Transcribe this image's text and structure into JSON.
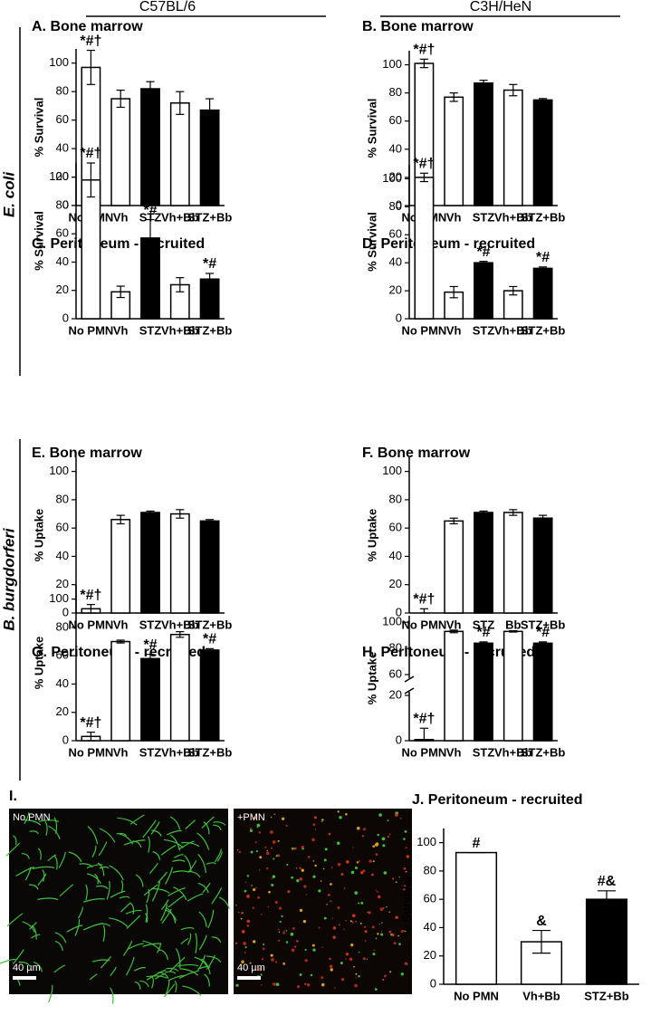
{
  "headers": [
    "C57BL/6",
    "C3H/HeN"
  ],
  "row_labels": [
    "E. coli",
    "B. burgdorferi"
  ],
  "images": {
    "label": "I.",
    "left": "No PMN",
    "right": "+PMN",
    "left_scale": "40 µm",
    "right_scale": "40 µm"
  },
  "chart_data": [
    {
      "type": "bar",
      "title": "A. Bone marrow",
      "ylabel": "% Survival",
      "categories": [
        "No PMN",
        "Vh",
        "STZ",
        "Vh+Bb",
        "STZ+Bb"
      ],
      "values": [
        97,
        75,
        82,
        72,
        67
      ],
      "errors": [
        12,
        6,
        5,
        8,
        8
      ],
      "annotations": [
        "*#†",
        null,
        null,
        null,
        null
      ],
      "colors": [
        "#ffffff",
        "#ffffff",
        "#000000",
        "#ffffff",
        "#000000"
      ],
      "ylim": [
        0,
        110
      ],
      "yticks": [
        0,
        20,
        40,
        60,
        80,
        100
      ]
    },
    {
      "type": "bar",
      "title": "B. Bone marrow",
      "ylabel": "% Survival",
      "categories": [
        "No PMN",
        "Vh",
        "STZ",
        "Vh+Bb",
        "STZ+Bb"
      ],
      "values": [
        101,
        77,
        87,
        82,
        75
      ],
      "errors": [
        3,
        3,
        2,
        4,
        1
      ],
      "annotations": [
        "*#†",
        null,
        null,
        null,
        null
      ],
      "colors": [
        "#ffffff",
        "#ffffff",
        "#000000",
        "#ffffff",
        "#000000"
      ],
      "ylim": [
        0,
        110
      ],
      "yticks": [
        0,
        20,
        40,
        60,
        80,
        100
      ]
    },
    {
      "type": "bar",
      "title": "C. Peritoneum - recruited",
      "ylabel": "% Survival",
      "categories": [
        "No PMN",
        "Vh",
        "STZ",
        "Vh+Bb",
        "STZ+Bb"
      ],
      "values": [
        98,
        19,
        57,
        24,
        28
      ],
      "errors": [
        12,
        4,
        13,
        5,
        4
      ],
      "annotations": [
        "*#†",
        null,
        "*#",
        null,
        "*#"
      ],
      "colors": [
        "#ffffff",
        "#ffffff",
        "#000000",
        "#ffffff",
        "#000000"
      ],
      "ylim": [
        0,
        110
      ],
      "yticks": [
        0,
        20,
        40,
        60,
        80,
        100
      ]
    },
    {
      "type": "bar",
      "title": "D. Peritoneum - recruited",
      "ylabel": "% Survival",
      "categories": [
        "No PMN",
        "Vh",
        "STZ",
        "Vh+Bb",
        "STZ+Bb"
      ],
      "values": [
        101,
        19,
        40,
        20,
        36
      ],
      "errors": [
        3,
        4,
        1,
        3,
        1
      ],
      "annotations": [
        "*#†",
        null,
        "*#",
        null,
        "*#"
      ],
      "colors": [
        "#ffffff",
        "#ffffff",
        "#000000",
        "#ffffff",
        "#000000"
      ],
      "ylim": [
        0,
        110
      ],
      "yticks": [
        0,
        20,
        40,
        60,
        80,
        100
      ]
    },
    {
      "type": "bar",
      "title": "E. Bone marrow",
      "ylabel": "% Uptake",
      "categories": [
        "No PMN",
        "Vh",
        "STZ",
        "Vh+Bb",
        "STZ+Bb"
      ],
      "values": [
        3,
        66,
        71,
        70,
        65
      ],
      "errors": [
        3,
        3,
        1,
        3,
        1
      ],
      "annotations": [
        "*#†",
        null,
        null,
        null,
        null
      ],
      "colors": [
        "#ffffff",
        "#ffffff",
        "#000000",
        "#ffffff",
        "#000000"
      ],
      "ylim": [
        0,
        110
      ],
      "yticks": [
        0,
        20,
        40,
        60,
        80,
        100
      ]
    },
    {
      "type": "bar",
      "title": "F. Bone marrow",
      "ylabel": "% Uptake",
      "categories": [
        "No PMN",
        "Vh",
        "STZ",
        "Bb",
        "STZ+Bb"
      ],
      "values": [
        0,
        65,
        71,
        71,
        67
      ],
      "errors": [
        3,
        2,
        1,
        2,
        2
      ],
      "annotations": [
        "*#†",
        null,
        null,
        null,
        null
      ],
      "colors": [
        "#ffffff",
        "#ffffff",
        "#000000",
        "#ffffff",
        "#000000"
      ],
      "ylim": [
        0,
        110
      ],
      "yticks": [
        0,
        20,
        40,
        60,
        80,
        100
      ]
    },
    {
      "type": "bar",
      "title": "G. Peritoneum - recruited",
      "ylabel": "% Uptake",
      "categories": [
        "No PMN",
        "Vh",
        "STZ",
        "Vh+Bb",
        "STZ+Bb"
      ],
      "values": [
        3,
        70,
        58,
        75,
        64
      ],
      "errors": [
        3,
        1,
        3,
        2,
        1
      ],
      "annotations": [
        "*#†",
        null,
        "*#",
        null,
        "*#"
      ],
      "colors": [
        "#ffffff",
        "#ffffff",
        "#000000",
        "#ffffff",
        "#000000"
      ],
      "ylim": [
        0,
        110
      ],
      "yticks": [
        0,
        20,
        40,
        60,
        80,
        100
      ]
    },
    {
      "type": "bar",
      "title": "H. Peritoneum - recruited",
      "ylabel": "% Uptake",
      "categories": [
        "No PMN",
        "Vh",
        "STZ",
        "Vh+Bb",
        "STZ+Bb"
      ],
      "values": [
        0.5,
        93,
        84,
        93,
        84
      ],
      "errors": [
        5,
        1,
        1,
        0.5,
        1
      ],
      "annotations": [
        "*#†",
        null,
        "*#",
        null,
        "*#"
      ],
      "colors": [
        "#ffffff",
        "#ffffff",
        "#000000",
        "#ffffff",
        "#000000"
      ],
      "ylim": [
        0,
        105
      ],
      "ybreak": [
        20,
        60
      ],
      "yticks": [
        0,
        20,
        60,
        80,
        100
      ]
    },
    {
      "type": "bar",
      "title": "J. Peritoneum - recruited",
      "ylabel": "% Survival",
      "categories": [
        "No PMN",
        "Vh+Bb",
        "STZ+Bb"
      ],
      "values": [
        93,
        30,
        60
      ],
      "errors": [
        0,
        8,
        6
      ],
      "annotations": [
        "#",
        "&",
        "#&"
      ],
      "colors": [
        "#ffffff",
        "#ffffff",
        "#000000"
      ],
      "ylim": [
        0,
        110
      ],
      "yticks": [
        0,
        20,
        40,
        60,
        80,
        100
      ]
    }
  ]
}
